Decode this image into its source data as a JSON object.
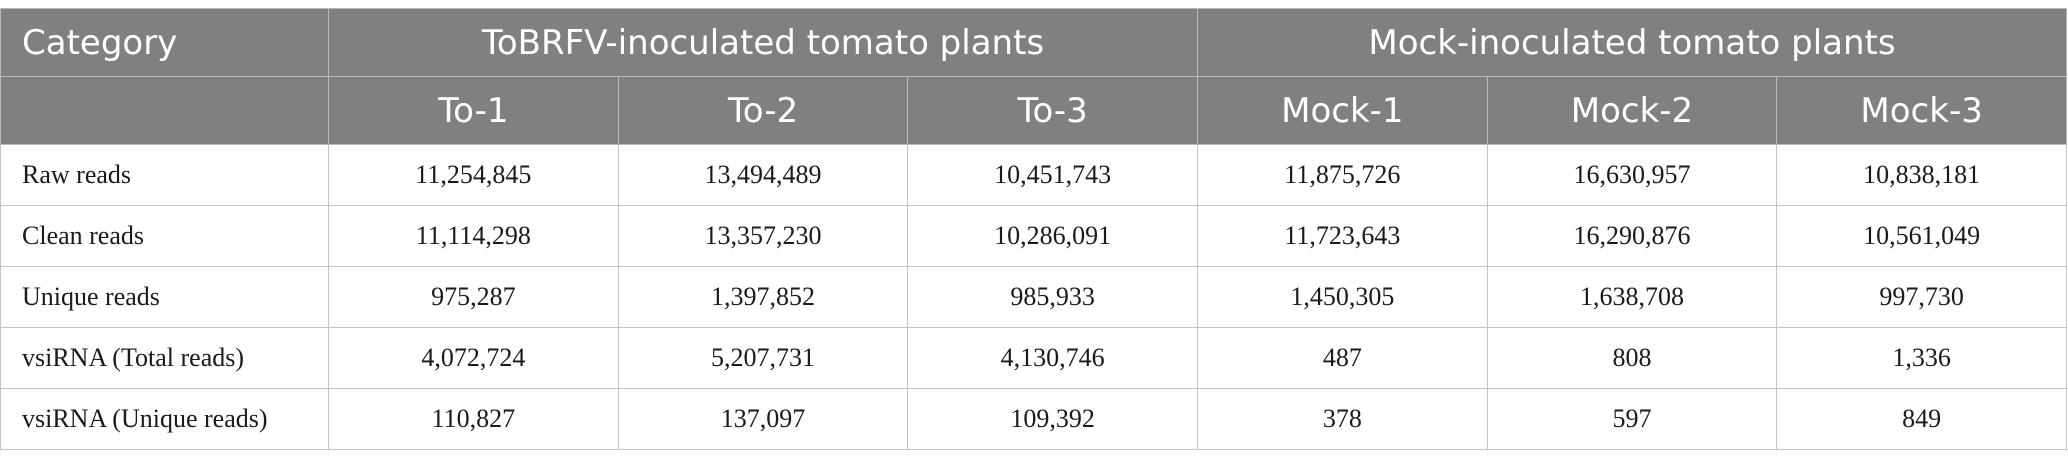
{
  "header": {
    "category": "Category",
    "group_tobrfv": "ToBRFV-inoculated tomato plants",
    "group_mock": "Mock-inoculated tomato plants",
    "samples": [
      "To-1",
      "To-2",
      "To-3",
      "Mock-1",
      "Mock-2",
      "Mock-3"
    ]
  },
  "rows": [
    {
      "label": "Raw reads",
      "values": [
        "11,254,845",
        "13,494,489",
        "10,451,743",
        "11,875,726",
        "16,630,957",
        "10,838,181"
      ]
    },
    {
      "label": "Clean reads",
      "values": [
        "11,114,298",
        "13,357,230",
        "10,286,091",
        "11,723,643",
        "16,290,876",
        "10,561,049"
      ]
    },
    {
      "label": "Unique reads",
      "values": [
        "975,287",
        "1,397,852",
        "985,933",
        "1,450,305",
        "1,638,708",
        "997,730"
      ]
    },
    {
      "label": "vsiRNA (Total reads)",
      "values": [
        "4,072,724",
        "5,207,731",
        "4,130,746",
        "487",
        "808",
        "1,336"
      ]
    },
    {
      "label": "vsiRNA (Unique reads)",
      "values": [
        "110,827",
        "137,097",
        "109,392",
        "378",
        "597",
        "849"
      ]
    }
  ]
}
